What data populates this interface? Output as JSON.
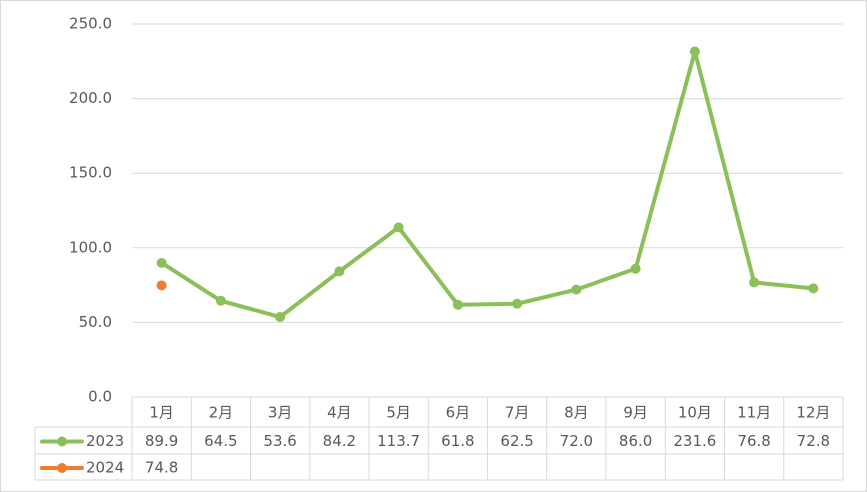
{
  "chart_data": {
    "type": "line",
    "categories": [
      "1月",
      "2月",
      "3月",
      "4月",
      "5月",
      "6月",
      "7月",
      "8月",
      "9月",
      "10月",
      "11月",
      "12月"
    ],
    "series": [
      {
        "name": "2023",
        "color": "#8bbf5a",
        "values": [
          89.9,
          64.5,
          53.6,
          84.2,
          113.7,
          61.8,
          62.5,
          72.0,
          86.0,
          231.6,
          76.8,
          72.8
        ],
        "value_labels": [
          "89.9",
          "64.5",
          "53.6",
          "84.2",
          "113.7",
          "61.8",
          "62.5",
          "72.0",
          "86.0",
          "231.6",
          "76.8",
          "72.8"
        ]
      },
      {
        "name": "2024",
        "color": "#ed7d31",
        "values": [
          74.8,
          null,
          null,
          null,
          null,
          null,
          null,
          null,
          null,
          null,
          null,
          null
        ],
        "value_labels": [
          "74.8",
          null,
          null,
          null,
          null,
          null,
          null,
          null,
          null,
          null,
          null,
          null
        ]
      }
    ],
    "ylim": [
      0,
      250
    ],
    "yticks": [
      {
        "value": 0,
        "label": "0.0"
      },
      {
        "value": 50,
        "label": "50.0"
      },
      {
        "value": 100,
        "label": "100.0"
      },
      {
        "value": 150,
        "label": "150.0"
      },
      {
        "value": 200,
        "label": "200.0"
      },
      {
        "value": 250,
        "label": "250.0"
      }
    ],
    "grid": true
  }
}
